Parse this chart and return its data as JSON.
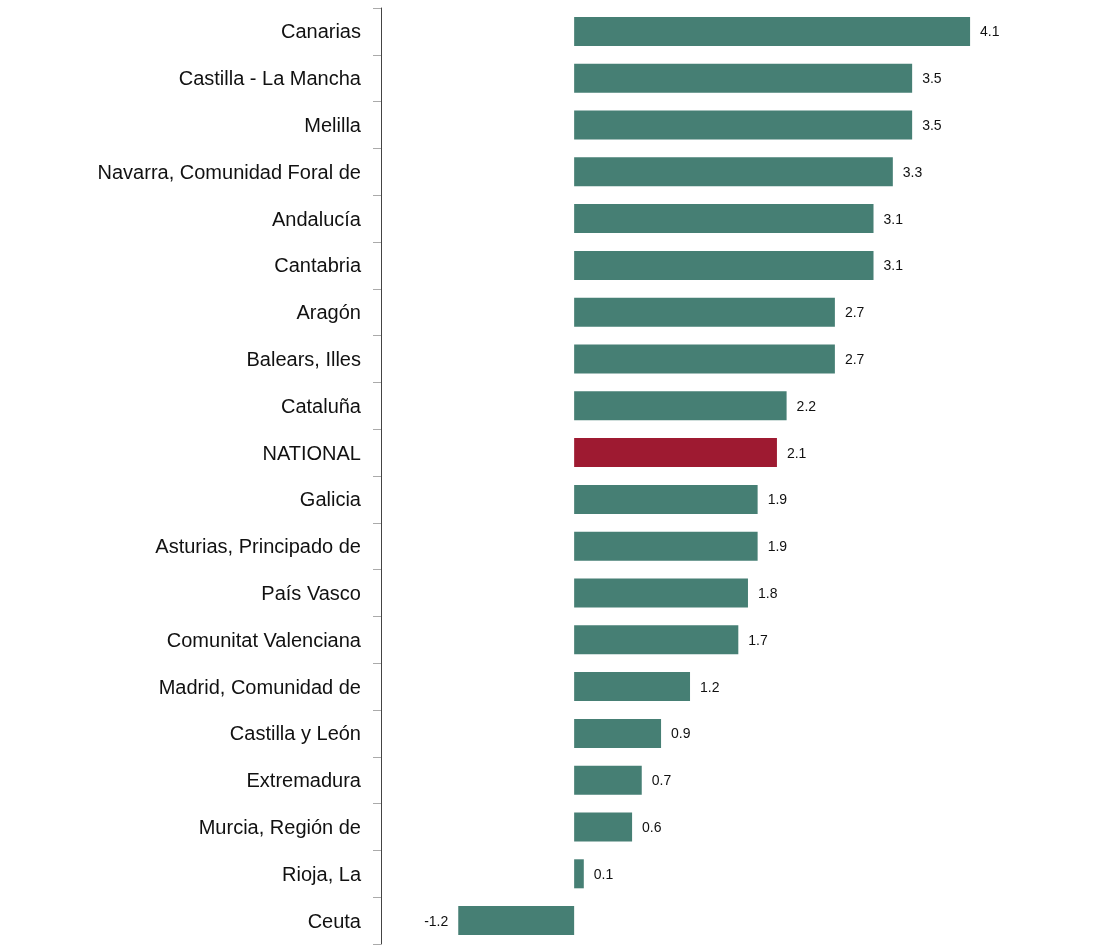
{
  "chart_data": {
    "type": "bar",
    "orientation": "horizontal",
    "categories": [
      "Canarias",
      "Castilla - La Mancha",
      "Melilla",
      "Navarra, Comunidad Foral de",
      "Andalucía",
      "Cantabria",
      "Aragón",
      "Balears, Illes",
      "Cataluña",
      "NATIONAL",
      "Galicia",
      "Asturias, Principado de",
      "País Vasco",
      "Comunitat Valenciana",
      "Madrid, Comunidad de",
      "Castilla y León",
      "Extremadura",
      "Murcia, Región de",
      "Rioja, La",
      "Ceuta"
    ],
    "values": [
      4.1,
      3.5,
      3.5,
      3.3,
      3.1,
      3.1,
      2.7,
      2.7,
      2.2,
      2.1,
      1.9,
      1.9,
      1.8,
      1.7,
      1.2,
      0.9,
      0.7,
      0.6,
      0.1,
      -1.2
    ],
    "colors": [
      "#467f74",
      "#467f74",
      "#467f74",
      "#467f74",
      "#467f74",
      "#467f74",
      "#467f74",
      "#467f74",
      "#467f74",
      "#9e1a31",
      "#467f74",
      "#467f74",
      "#467f74",
      "#467f74",
      "#467f74",
      "#467f74",
      "#467f74",
      "#467f74",
      "#467f74",
      "#467f74"
    ],
    "data_labels": true
  }
}
